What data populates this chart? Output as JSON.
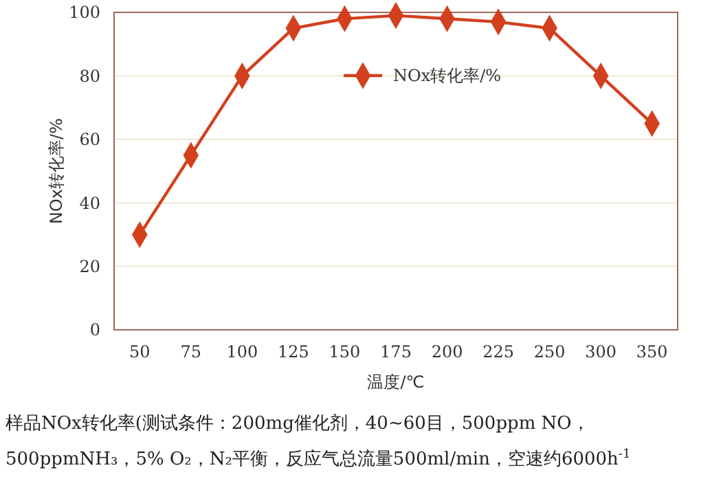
{
  "chart_data": {
    "type": "line",
    "xlabel": "温度/℃",
    "ylabel": "NOx转化率/%",
    "categories": [
      "50",
      "75",
      "100",
      "125",
      "150",
      "175",
      "200",
      "225",
      "250",
      "300",
      "350"
    ],
    "series": [
      {
        "name": "NOx转化率/%",
        "color": "#d2401e",
        "values": [
          30,
          55,
          80,
          95,
          98,
          99,
          98,
          97,
          95,
          80,
          65
        ]
      }
    ],
    "ylim": [
      0,
      100
    ],
    "yticks": [
      0,
      20,
      40,
      60,
      80,
      100
    ],
    "grid": "y",
    "legend": "top",
    "marker": "diamond",
    "line_style": "solid",
    "annotations": [
      "样品NOx转化率(测试条件：200mg催化剂，40~60目，500ppm NO，",
      "500ppmNH₃，5% O₂，N₂平衡，反应气总流量500ml/min，空速约6000h$^{-1}$"
    ]
  }
}
